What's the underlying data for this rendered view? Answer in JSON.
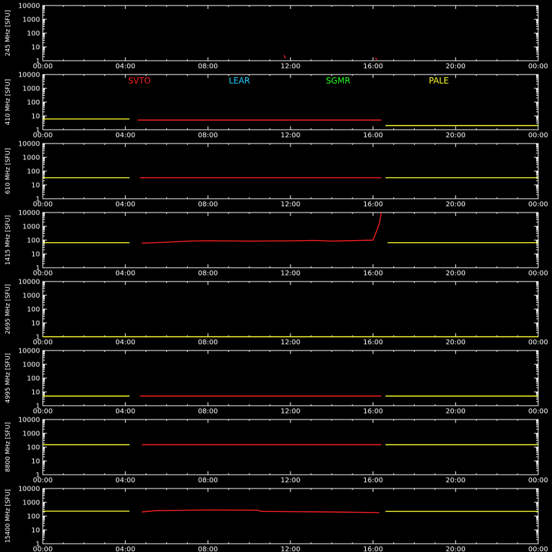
{
  "colors": {
    "background": "#000000",
    "axis": "#ffffff",
    "svto": "#ff2020",
    "lear": "#20d0ff",
    "sgmr": "#20ff20",
    "pale": "#ffff30"
  },
  "legend": [
    {
      "name": "SVTO",
      "color": "#ff2020"
    },
    {
      "name": "LEAR",
      "color": "#20d0ff"
    },
    {
      "name": "SGMR",
      "color": "#20ff20"
    },
    {
      "name": "PALE",
      "color": "#ffff30"
    }
  ],
  "chart_data": [
    {
      "type": "scatter",
      "ylabel": "245 MHz [SFU]",
      "ylim": [
        1,
        10000
      ],
      "yscale": "log",
      "yticks": [
        "1",
        "10",
        "100",
        "1000",
        "10000"
      ],
      "xticks": [
        "00:00",
        "04:00",
        "08:00",
        "12:00",
        "16:00",
        "20:00",
        "00:00"
      ],
      "xlim_hours": [
        0,
        24
      ],
      "series": [
        {
          "station": "SVTO",
          "segments": [
            {
              "t": [
                11.7,
                11.75
              ],
              "y": [
                2.5,
                1.5
              ]
            },
            {
              "t": [
                16.1,
                16.2
              ],
              "y": [
                1.6,
                1.2
              ]
            }
          ]
        }
      ]
    },
    {
      "type": "scatter",
      "ylabel": "410 MHz [SFU]",
      "ylim": [
        1,
        10000
      ],
      "yscale": "log",
      "yticks": [
        "1",
        "10",
        "100",
        "1000",
        "10000"
      ],
      "xticks": [
        "00:00",
        "04:00",
        "08:00",
        "12:00",
        "16:00",
        "20:00",
        "00:00"
      ],
      "xlim_hours": [
        0,
        24
      ],
      "series": [
        {
          "station": "PALE",
          "segments": [
            {
              "t": [
                0,
                4.2
              ],
              "y": [
                6,
                6
              ]
            },
            {
              "t": [
                16.6,
                24
              ],
              "y": [
                2,
                2
              ]
            }
          ]
        },
        {
          "station": "SVTO",
          "segments": [
            {
              "t": [
                4.6,
                16.4
              ],
              "y": [
                5,
                5
              ]
            }
          ]
        }
      ]
    },
    {
      "type": "line",
      "ylabel": "610 MHz [SFU]",
      "ylim": [
        1,
        10000
      ],
      "yscale": "log",
      "yticks": [
        "1",
        "10",
        "100",
        "1000",
        "10000"
      ],
      "xticks": [
        "00:00",
        "04:00",
        "08:00",
        "12:00",
        "16:00",
        "20:00",
        "00:00"
      ],
      "xlim_hours": [
        0,
        24
      ],
      "series": [
        {
          "station": "PALE",
          "segments": [
            {
              "t": [
                0,
                4.2
              ],
              "y": [
                33,
                33
              ]
            },
            {
              "t": [
                16.6,
                24
              ],
              "y": [
                33,
                33
              ]
            }
          ]
        },
        {
          "station": "SVTO",
          "segments": [
            {
              "t": [
                4.7,
                16.4
              ],
              "y": [
                33,
                33
              ]
            }
          ]
        }
      ]
    },
    {
      "type": "line",
      "ylabel": "1415 MHz [SFU]",
      "ylim": [
        1,
        10000
      ],
      "yscale": "log",
      "yticks": [
        "1",
        "10",
        "100",
        "1000",
        "10000"
      ],
      "xticks": [
        "00:00",
        "04:00",
        "08:00",
        "12:00",
        "16:00",
        "20:00",
        "00:00"
      ],
      "xlim_hours": [
        0,
        24
      ],
      "series": [
        {
          "station": "PALE",
          "segments": [
            {
              "t": [
                0,
                4.2
              ],
              "y": [
                65,
                65
              ]
            },
            {
              "t": [
                16.7,
                24
              ],
              "y": [
                65,
                65
              ]
            }
          ]
        },
        {
          "station": "SVTO",
          "segments": [
            {
              "t": [
                4.8,
                6.0,
                7.0,
                8.0,
                10.0,
                12.0,
                13.2,
                14.0,
                16.0,
                16.3,
                16.4
              ],
              "y": [
                60,
                70,
                85,
                90,
                85,
                88,
                95,
                85,
                100,
                1500,
                10000
              ]
            }
          ]
        }
      ]
    },
    {
      "type": "line",
      "ylabel": "2695 MHz [SFU]",
      "ylim": [
        1,
        10000
      ],
      "yscale": "log",
      "yticks": [
        "1",
        "10",
        "100",
        "1000",
        "10000"
      ],
      "xticks": [
        "00:00",
        "04:00",
        "08:00",
        "12:00",
        "16:00",
        "20:00",
        "00:00"
      ],
      "xlim_hours": [
        0,
        24
      ],
      "series": [
        {
          "station": "PALE",
          "segments": [
            {
              "t": [
                0,
                24
              ],
              "y": [
                1,
                1
              ]
            }
          ]
        }
      ]
    },
    {
      "type": "scatter",
      "ylabel": "4995 MHz [SFU]",
      "ylim": [
        1,
        10000
      ],
      "yscale": "log",
      "yticks": [
        "1",
        "10",
        "100",
        "1000",
        "10000"
      ],
      "xticks": [
        "00:00",
        "04:00",
        "08:00",
        "12:00",
        "16:00",
        "20:00",
        "00:00"
      ],
      "xlim_hours": [
        0,
        24
      ],
      "series": [
        {
          "station": "PALE",
          "segments": [
            {
              "t": [
                0,
                4.2
              ],
              "y": [
                5,
                5
              ]
            },
            {
              "t": [
                16.6,
                24
              ],
              "y": [
                5,
                5
              ]
            }
          ]
        },
        {
          "station": "SVTO",
          "segments": [
            {
              "t": [
                4.7,
                16.4
              ],
              "y": [
                5,
                5
              ]
            }
          ]
        }
      ]
    },
    {
      "type": "line",
      "ylabel": "8800 MHz [SFU]",
      "ylim": [
        1,
        10000
      ],
      "yscale": "log",
      "yticks": [
        "1",
        "10",
        "100",
        "1000",
        "10000"
      ],
      "xticks": [
        "00:00",
        "04:00",
        "08:00",
        "12:00",
        "16:00",
        "20:00",
        "00:00"
      ],
      "xlim_hours": [
        0,
        24
      ],
      "series": [
        {
          "station": "PALE",
          "segments": [
            {
              "t": [
                0,
                4.2
              ],
              "y": [
                150,
                150
              ]
            },
            {
              "t": [
                16.6,
                24
              ],
              "y": [
                150,
                150
              ]
            }
          ]
        },
        {
          "station": "SVTO",
          "segments": [
            {
              "t": [
                4.8,
                16.4
              ],
              "y": [
                150,
                150
              ]
            }
          ]
        }
      ]
    },
    {
      "type": "line",
      "ylabel": "15400 MHz [SFU]",
      "ylim": [
        1,
        10000
      ],
      "yscale": "log",
      "yticks": [
        "1",
        "10",
        "100",
        "1000",
        "10000"
      ],
      "xticks": [
        "00:00",
        "04:00",
        "08:00",
        "12:00",
        "16:00",
        "20:00",
        "00:00"
      ],
      "xlim_hours": [
        0,
        24
      ],
      "series": [
        {
          "station": "PALE",
          "segments": [
            {
              "t": [
                0,
                4.2
              ],
              "y": [
                230,
                230
              ]
            },
            {
              "t": [
                16.6,
                24
              ],
              "y": [
                220,
                220
              ]
            }
          ]
        },
        {
          "station": "SVTO",
          "segments": [
            {
              "t": [
                4.8,
                5.5,
                8.0,
                10.4,
                10.6,
                14.0,
                16.3
              ],
              "y": [
                200,
                250,
                280,
                270,
                220,
                200,
                180
              ]
            }
          ]
        }
      ]
    }
  ]
}
